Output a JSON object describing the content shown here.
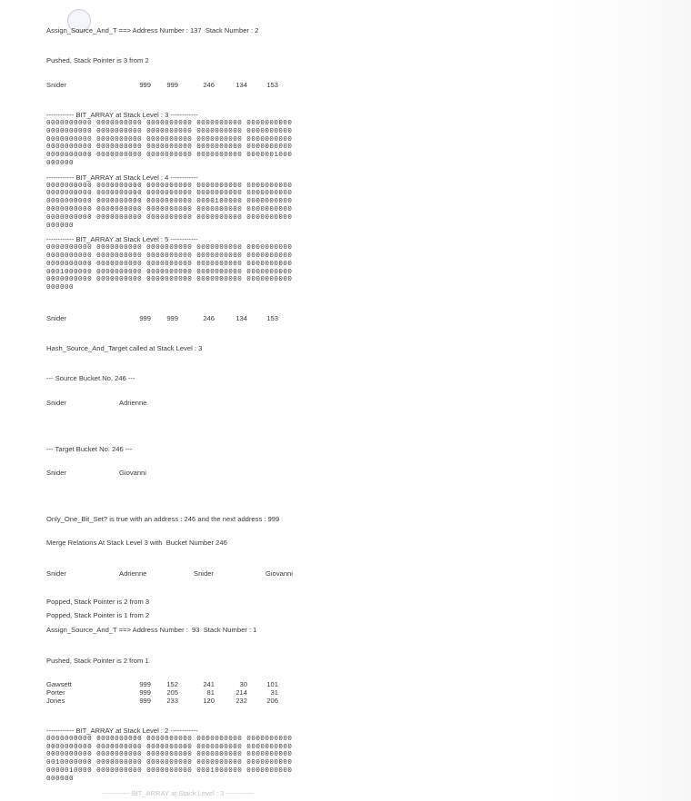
{
  "lines": {
    "assign1": "Assign_Source_And_T ==> Address Number : 137  Stack Number : 2",
    "pushed1": "Pushed, Stack Pointer is 3 from 2",
    "hash": "Hash_Source_And_Target called at Stack Level : 3",
    "source_bucket": "--- Source Bucket No. 246 ---",
    "target_bucket": "--- Target Bucket No. 246 ---",
    "only_one": "Only_One_Bit_Set? is true with an address : 246 and the next address : 999",
    "merge": "Merge Relations At Stack Level 3 with  Bucket Number 246",
    "popped1": "Popped, Stack Pointer is 2 from 3",
    "popped2": "Popped, Stack Pointer is 1 from 2",
    "assign2": "Assign_Source_And_T ==> Address Number :  93  Stack Number : 1",
    "pushed2": "Pushed, Stack Pointer is 2 from 1",
    "cutoff": "------------ BIT_ARRAY at Stack Level : 3 ------------"
  },
  "records1": [
    {
      "name": "Snider",
      "values": [
        "999",
        "999",
        "246",
        "134",
        "153"
      ]
    }
  ],
  "records2": [
    {
      "name": "Snider",
      "values": [
        "999",
        "999",
        "246",
        "134",
        "153"
      ]
    }
  ],
  "source_pair": [
    "Snider",
    "Adrienne"
  ],
  "target_pair": [
    "Snider",
    "Giovanni"
  ],
  "merged": [
    "Snider",
    "Adrienne",
    "Snider",
    "Giovanni"
  ],
  "records3": [
    {
      "name": "Gawsett",
      "values": [
        "999",
        "152",
        "241",
        "30",
        "101"
      ]
    },
    {
      "name": "Porter",
      "values": [
        "999",
        "205",
        "81",
        "214",
        "31"
      ]
    },
    {
      "name": "Jones",
      "values": [
        "999",
        "233",
        "120",
        "232",
        "206"
      ]
    }
  ],
  "bit_arrays": [
    {
      "header": "------------ BIT_ARRAY at Stack Level : 3 ------------",
      "rows": [
        "0000000000 0000000000 0000000000 0000000000 0000000000",
        "0000000000 0000000000 0000000000 0000000000 0000000000",
        "0000000000 0000000000 0000000000 0000000000 0000000000",
        "0000000000 0000000000 0000000000 0000000000 0000000000",
        "0000000000 0000000000 0000000000 0000000000 0000001000",
        "000000"
      ]
    },
    {
      "header": "------------ BIT_ARRAY at Stack Level : 4 ------------",
      "rows": [
        "0000000000 0000000000 0000000000 0000000000 0000000000",
        "0000000000 0000000000 0000000000 0000000000 0000000000",
        "0000000000 0000000000 0000000000 0000100000 0000000000",
        "0000000000 0000000000 0000000000 0000000000 0000000000",
        "0000000000 0000000000 0000000000 0000000000 0000000000",
        "000000"
      ]
    },
    {
      "header": "------------ BIT_ARRAY at Stack Level : 5 ------------",
      "rows": [
        "0000000000 0000000000 0000000000 0000000000 0000000000",
        "0000000000 0000000000 0000000000 0000000000 0000000000",
        "0000000000 0000000000 0000000000 0000000000 0000000000",
        "0001000000 0000000000 0000000000 0000000000 0000000000",
        "0000000000 0000000000 0000000000 0000000000 0000000000",
        "000000"
      ]
    },
    {
      "header": "------------ BIT_ARRAY at Stack Level : 2 ------------",
      "rows": [
        "0000000000 0000000000 0000000000 0000000000 0000000000",
        "0000000000 0000000000 0000000000 0000000000 0000000000",
        "0000000000 0000000000 0000000000 0000000000 0000000000",
        "0010000000 0000000000 0000000000 0000000000 0000000000",
        "0000010000 0000000000 0000000000 0001000000 0000000000",
        "000000"
      ]
    }
  ]
}
